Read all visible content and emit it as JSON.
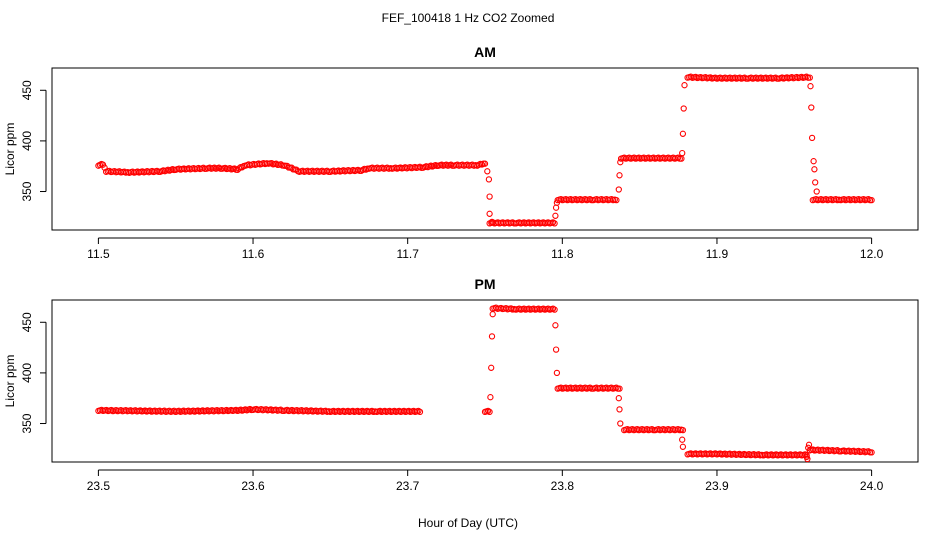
{
  "figure_title": "FEF_100418  1 Hz CO2 Zoomed",
  "xlabel": "Hour of Day (UTC)",
  "point_color": "#ff0000",
  "chart_data": [
    {
      "type": "scatter",
      "title": "AM",
      "xlabel": "Hour of Day (UTC)",
      "ylabel": "Licor ppm",
      "xlim": [
        11.47,
        12.03
      ],
      "ylim": [
        312,
        472
      ],
      "xticks": [
        "11.5",
        "11.6",
        "11.7",
        "11.8",
        "11.9",
        "12.0"
      ],
      "xtick_values": [
        11.5,
        11.6,
        11.7,
        11.8,
        11.9,
        12.0
      ],
      "yticks": [
        "350",
        "400",
        "450"
      ],
      "ytick_values": [
        350,
        400,
        450
      ],
      "series": [
        {
          "marker": "open-circle",
          "color": "#ff0000",
          "segments": [
            [
              [
                11.5,
                376
              ],
              [
                11.503,
                377
              ],
              [
                11.505,
                370
              ],
              [
                11.52,
                369
              ],
              [
                11.54,
                370
              ],
              [
                11.55,
                372
              ],
              [
                11.57,
                373
              ],
              [
                11.58,
                373
              ],
              [
                11.59,
                372
              ],
              [
                11.595,
                376
              ],
              [
                11.61,
                378
              ],
              [
                11.62,
                376
              ],
              [
                11.63,
                370
              ],
              [
                11.65,
                370
              ],
              [
                11.67,
                371
              ],
              [
                11.675,
                373
              ],
              [
                11.69,
                373
              ],
              [
                11.71,
                374
              ],
              [
                11.72,
                376
              ],
              [
                11.73,
                376
              ],
              [
                11.745,
                376
              ],
              [
                11.75,
                378
              ]
            ],
            [
              [
                11.753,
                319
              ],
              [
                11.77,
                319
              ],
              [
                11.795,
                319
              ]
            ],
            [
              [
                11.797,
                342
              ],
              [
                11.82,
                342
              ],
              [
                11.835,
                342
              ]
            ],
            [
              [
                11.838,
                383
              ],
              [
                11.86,
                383
              ],
              [
                11.877,
                383
              ]
            ],
            [
              [
                11.881,
                463
              ],
              [
                11.9,
                462
              ],
              [
                11.92,
                462
              ],
              [
                11.94,
                462
              ],
              [
                11.96,
                463
              ]
            ],
            [
              [
                11.962,
                342
              ],
              [
                11.98,
                342
              ],
              [
                12.0,
                342
              ]
            ]
          ],
          "transitions": [
            [
              11.7515,
              370
            ],
            [
              11.7525,
              362
            ],
            [
              11.753,
              345
            ],
            [
              11.753,
              328
            ],
            [
              11.7545,
              320
            ],
            [
              11.7955,
              326
            ],
            [
              11.796,
              334
            ],
            [
              11.7965,
              339
            ],
            [
              11.8365,
              352
            ],
            [
              11.837,
              366
            ],
            [
              11.8375,
              379
            ],
            [
              11.8775,
              388
            ],
            [
              11.878,
              407
            ],
            [
              11.8785,
              432
            ],
            [
              11.879,
              455
            ],
            [
              11.9605,
              454
            ],
            [
              11.961,
              433
            ],
            [
              11.9615,
              403
            ],
            [
              11.9625,
              380
            ],
            [
              11.963,
              372
            ],
            [
              11.9635,
              359
            ],
            [
              11.9645,
              350
            ]
          ]
        }
      ]
    },
    {
      "type": "scatter",
      "title": "PM",
      "xlabel": "Hour of Day (UTC)",
      "ylabel": "Licor ppm",
      "xlim": [
        23.47,
        24.03
      ],
      "ylim": [
        312,
        472
      ],
      "xticks": [
        "23.5",
        "23.6",
        "23.7",
        "23.8",
        "23.9",
        "24.0"
      ],
      "xtick_values": [
        23.5,
        23.6,
        23.7,
        23.8,
        23.9,
        24.0
      ],
      "yticks": [
        "350",
        "400",
        "450"
      ],
      "ytick_values": [
        350,
        400,
        450
      ],
      "series": [
        {
          "marker": "open-circle",
          "color": "#ff0000",
          "segments": [
            [
              [
                23.5,
                363
              ],
              [
                23.55,
                362
              ],
              [
                23.59,
                363
              ],
              [
                23.6,
                364
              ],
              [
                23.62,
                363
              ],
              [
                23.65,
                362
              ],
              [
                23.68,
                362
              ],
              [
                23.708,
                362
              ]
            ],
            [
              [
                23.75,
                362
              ],
              [
                23.753,
                362
              ]
            ],
            [
              [
                23.755,
                464
              ],
              [
                23.77,
                463
              ],
              [
                23.795,
                463
              ]
            ],
            [
              [
                23.797,
                385
              ],
              [
                23.82,
                385
              ],
              [
                23.837,
                385
              ]
            ],
            [
              [
                23.84,
                344
              ],
              [
                23.86,
                344
              ],
              [
                23.878,
                344
              ]
            ],
            [
              [
                23.881,
                320
              ],
              [
                23.9,
                320
              ],
              [
                23.93,
                319
              ],
              [
                23.958,
                319
              ]
            ],
            [
              [
                23.96,
                324
              ],
              [
                23.98,
                323
              ],
              [
                24.0,
                322
              ]
            ]
          ],
          "transitions": [
            [
              23.7535,
              376
            ],
            [
              23.754,
              405
            ],
            [
              23.7545,
              436
            ],
            [
              23.755,
              458
            ],
            [
              23.7955,
              447
            ],
            [
              23.796,
              423
            ],
            [
              23.7965,
              400
            ],
            [
              23.8365,
              375
            ],
            [
              23.837,
              364
            ],
            [
              23.8375,
              350
            ],
            [
              23.8775,
              334
            ],
            [
              23.878,
              327
            ],
            [
              23.958,
              317
            ],
            [
              23.9585,
              315
            ],
            [
              23.959,
              326
            ],
            [
              23.9595,
              329
            ]
          ]
        }
      ]
    }
  ]
}
